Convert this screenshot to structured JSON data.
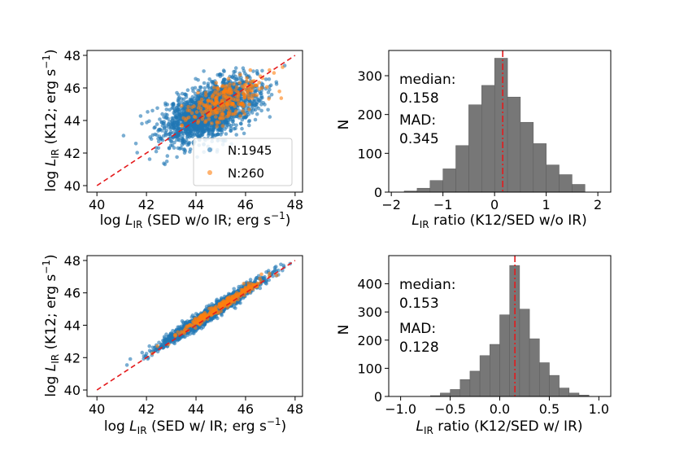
{
  "colors": {
    "series_blue": "#1f77b4",
    "series_orange": "#ff7f0e",
    "one_to_one": "#e41a1c",
    "hist_bar": "#777777",
    "hist_edge": "#5a5a5a",
    "median_line": "#e41a1c"
  },
  "chart_data": [
    {
      "id": "scatter_top",
      "type": "scatter",
      "xlabel_main": "log ",
      "xlabel_L": "L",
      "xlabel_sub": "IR",
      "xlabel_rest": " (SED w/o IR; erg s",
      "xlabel_sup": "−1",
      "xlabel_close": ")",
      "ylabel_main": "log ",
      "ylabel_L": "L",
      "ylabel_sub": "IR",
      "ylabel_rest": " (K12; erg s",
      "ylabel_sup": "−1",
      "ylabel_close": ")",
      "xlim": [
        39.6,
        48.3
      ],
      "ylim": [
        39.6,
        48.3
      ],
      "xticks": [
        40,
        42,
        44,
        46,
        48
      ],
      "yticks": [
        40,
        42,
        44,
        46,
        48
      ],
      "one_to_one": [
        [
          40,
          40
        ],
        [
          48,
          48
        ]
      ],
      "series": [
        {
          "name": "N:1945",
          "count": 1945,
          "color_key": "series_blue",
          "center": [
            44.6,
            44.6
          ],
          "spread_x": 0.95,
          "spread_y": 0.95,
          "corr": 0.55
        },
        {
          "name": "N:260",
          "count": 260,
          "color_key": "series_orange",
          "center": [
            45.2,
            45.2
          ],
          "spread_x": 0.75,
          "spread_y": 0.7,
          "corr": 0.6
        }
      ],
      "legend_loc": "lower-right"
    },
    {
      "id": "hist_top",
      "type": "bar",
      "xlabel_L": "L",
      "xlabel_sub": "IR",
      "xlabel_rest": " ratio (K12/SED w/o IR)",
      "ylabel": "N",
      "xlim": [
        -2.05,
        2.25
      ],
      "ylim": [
        0,
        365
      ],
      "xticks": [
        "−2",
        "−1",
        "0",
        "1",
        "2"
      ],
      "xtick_values": [
        -2,
        -1,
        0,
        1,
        2
      ],
      "yticks": [
        0,
        100,
        200,
        300
      ],
      "bin_edges": [
        -1.75,
        -1.5,
        -1.25,
        -1.0,
        -0.75,
        -0.5,
        -0.25,
        0.0,
        0.25,
        0.5,
        0.75,
        1.0,
        1.25,
        1.5,
        1.75
      ],
      "values": [
        3,
        10,
        30,
        60,
        120,
        225,
        275,
        345,
        245,
        180,
        125,
        70,
        45,
        20
      ],
      "median": 0.158,
      "annot_median_label": "median:",
      "annot_median_value": "0.158",
      "annot_mad_label": "MAD:",
      "annot_mad_value": "0.345"
    },
    {
      "id": "scatter_bottom",
      "type": "scatter",
      "xlabel_main": "log ",
      "xlabel_L": "L",
      "xlabel_sub": "IR",
      "xlabel_rest": " (SED w/ IR; erg s",
      "xlabel_sup": "−1",
      "xlabel_close": ")",
      "ylabel_main": "log ",
      "ylabel_L": "L",
      "ylabel_sub": "IR",
      "ylabel_rest": " (K12; erg s",
      "ylabel_sup": "−1",
      "ylabel_close": ")",
      "xlim": [
        39.6,
        48.3
      ],
      "ylim": [
        39.6,
        48.3
      ],
      "xticks": [
        40,
        42,
        44,
        46,
        48
      ],
      "yticks": [
        40,
        42,
        44,
        46,
        48
      ],
      "one_to_one": [
        [
          40,
          40
        ],
        [
          48,
          48
        ]
      ],
      "series": [
        {
          "name": "N:1945",
          "count": 1945,
          "color_key": "series_blue",
          "center": [
            44.6,
            44.75
          ],
          "spread_x": 1.0,
          "spread_y": 1.0,
          "corr": 0.98
        },
        {
          "name": "N:260",
          "count": 260,
          "color_key": "series_orange",
          "center": [
            45.0,
            45.15
          ],
          "spread_x": 0.85,
          "spread_y": 0.85,
          "corr": 0.985
        }
      ]
    },
    {
      "id": "hist_bottom",
      "type": "bar",
      "xlabel_L": "L",
      "xlabel_sub": "IR",
      "xlabel_rest": " ratio (K12/SED w/ IR)",
      "ylabel": "N",
      "xlim": [
        -1.12,
        1.12
      ],
      "ylim": [
        0,
        500
      ],
      "xticks": [
        "−1.0",
        "−0.5",
        "0.0",
        "0.5",
        "1.0"
      ],
      "xtick_values": [
        -1.0,
        -0.5,
        0.0,
        0.5,
        1.0
      ],
      "yticks": [
        0,
        100,
        200,
        300,
        400
      ],
      "bin_edges": [
        -0.7,
        -0.6,
        -0.5,
        -0.4,
        -0.3,
        -0.2,
        -0.1,
        0.0,
        0.1,
        0.2,
        0.3,
        0.4,
        0.5,
        0.6,
        0.7,
        0.8,
        0.9
      ],
      "values": [
        3,
        12,
        25,
        60,
        90,
        145,
        185,
        290,
        465,
        310,
        205,
        120,
        75,
        30,
        12,
        5
      ],
      "median": 0.153,
      "annot_median_label": "median:",
      "annot_median_value": "0.153",
      "annot_mad_label": "MAD:",
      "annot_mad_value": "0.128"
    }
  ]
}
